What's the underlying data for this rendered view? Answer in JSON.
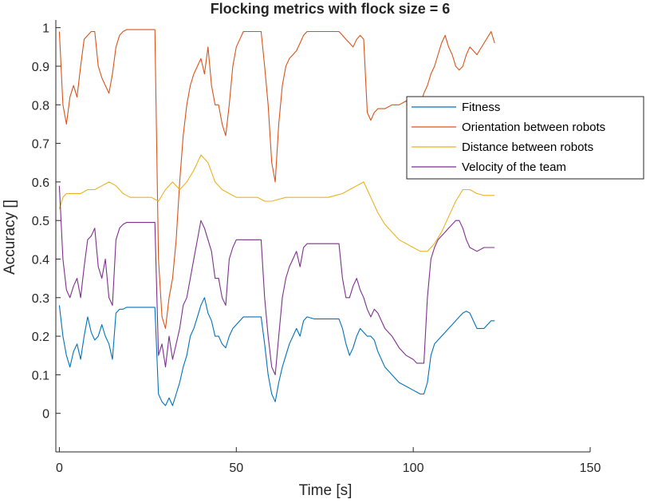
{
  "chart_data": {
    "type": "line",
    "title": "Flocking metrics with flock size = 6",
    "xlabel": "Time [s]",
    "ylabel": "Accuracy []",
    "xlim": [
      -1,
      150
    ],
    "ylim": [
      -0.1,
      1.02
    ],
    "xticks": [
      0,
      50,
      100,
      150
    ],
    "xtick_labels": [
      "0",
      "50",
      "100",
      "150"
    ],
    "yticks": [
      0,
      0.1,
      0.2,
      0.3,
      0.4,
      0.5,
      0.6,
      0.7,
      0.8,
      0.9,
      1
    ],
    "ytick_labels": [
      "0",
      "0.1",
      "0.2",
      "0.3",
      "0.4",
      "0.5",
      "0.6",
      "0.7",
      "0.8",
      "0.9",
      "1"
    ],
    "grid": false,
    "legend_position": "top-right",
    "series": [
      {
        "name": "Fitness",
        "color": "#0072BD",
        "x": [
          0,
          1,
          2,
          3,
          4,
          5,
          6,
          7,
          8,
          9,
          10,
          11,
          12,
          13,
          14,
          15,
          16,
          17,
          18,
          19,
          20,
          22,
          24,
          26,
          27,
          28,
          29,
          30,
          31,
          32,
          33,
          34,
          35,
          36,
          37,
          38,
          39,
          40,
          41,
          42,
          43,
          44,
          45,
          46,
          47,
          48,
          49,
          50,
          52,
          54,
          56,
          57,
          58,
          59,
          60,
          61,
          62,
          63,
          64,
          65,
          66,
          67,
          68,
          69,
          70,
          72,
          74,
          76,
          78,
          79,
          80,
          81,
          82,
          83,
          84,
          85,
          86,
          87,
          88,
          89,
          90,
          92,
          94,
          96,
          98,
          100,
          101,
          102,
          103,
          104,
          105,
          106,
          107,
          108,
          109,
          110,
          111,
          112,
          113,
          114,
          115,
          116,
          118,
          120,
          122,
          123
        ],
        "y": [
          0.28,
          0.2,
          0.15,
          0.12,
          0.16,
          0.18,
          0.14,
          0.2,
          0.25,
          0.21,
          0.19,
          0.2,
          0.23,
          0.2,
          0.18,
          0.14,
          0.26,
          0.27,
          0.27,
          0.275,
          0.275,
          0.275,
          0.275,
          0.275,
          0.275,
          0.05,
          0.03,
          0.02,
          0.04,
          0.02,
          0.05,
          0.08,
          0.12,
          0.15,
          0.2,
          0.22,
          0.25,
          0.28,
          0.3,
          0.26,
          0.24,
          0.2,
          0.2,
          0.18,
          0.17,
          0.2,
          0.22,
          0.23,
          0.25,
          0.25,
          0.25,
          0.25,
          0.18,
          0.1,
          0.05,
          0.03,
          0.08,
          0.12,
          0.15,
          0.18,
          0.2,
          0.22,
          0.2,
          0.24,
          0.25,
          0.245,
          0.245,
          0.245,
          0.245,
          0.245,
          0.22,
          0.18,
          0.15,
          0.17,
          0.2,
          0.22,
          0.21,
          0.2,
          0.2,
          0.19,
          0.16,
          0.12,
          0.1,
          0.08,
          0.07,
          0.06,
          0.055,
          0.05,
          0.05,
          0.08,
          0.15,
          0.18,
          0.19,
          0.2,
          0.21,
          0.22,
          0.23,
          0.24,
          0.25,
          0.26,
          0.265,
          0.26,
          0.22,
          0.22,
          0.24,
          0.24
        ]
      },
      {
        "name": "Orientation between robots",
        "color": "#D95319",
        "x": [
          0,
          1,
          2,
          3,
          4,
          5,
          6,
          7,
          8,
          9,
          10,
          11,
          12,
          13,
          14,
          15,
          16,
          17,
          18,
          19,
          20,
          22,
          24,
          26,
          27,
          28,
          29,
          30,
          31,
          32,
          33,
          34,
          35,
          36,
          37,
          38,
          39,
          40,
          41,
          42,
          43,
          44,
          45,
          46,
          47,
          48,
          49,
          50,
          51,
          52,
          54,
          56,
          57,
          58,
          59,
          60,
          61,
          62,
          63,
          64,
          65,
          66,
          67,
          68,
          69,
          70,
          72,
          74,
          76,
          78,
          79,
          80,
          81,
          82,
          83,
          84,
          85,
          86,
          87,
          88,
          89,
          90,
          92,
          94,
          96,
          98,
          100,
          101,
          102,
          103,
          104,
          105,
          106,
          107,
          108,
          109,
          110,
          111,
          112,
          113,
          114,
          115,
          116,
          118,
          120,
          122,
          123
        ],
        "y": [
          0.99,
          0.8,
          0.75,
          0.82,
          0.85,
          0.82,
          0.9,
          0.97,
          0.98,
          0.99,
          0.99,
          0.9,
          0.87,
          0.85,
          0.83,
          0.88,
          0.95,
          0.98,
          0.99,
          0.995,
          0.995,
          0.995,
          0.995,
          0.995,
          0.995,
          0.4,
          0.25,
          0.22,
          0.3,
          0.35,
          0.45,
          0.6,
          0.72,
          0.8,
          0.85,
          0.88,
          0.9,
          0.92,
          0.88,
          0.95,
          0.85,
          0.8,
          0.8,
          0.75,
          0.72,
          0.8,
          0.9,
          0.95,
          0.97,
          0.99,
          0.99,
          0.99,
          0.99,
          0.9,
          0.8,
          0.65,
          0.6,
          0.75,
          0.85,
          0.9,
          0.92,
          0.93,
          0.94,
          0.96,
          0.98,
          0.99,
          0.99,
          0.99,
          0.99,
          0.99,
          0.99,
          0.98,
          0.97,
          0.96,
          0.95,
          0.97,
          0.98,
          0.97,
          0.78,
          0.76,
          0.78,
          0.79,
          0.79,
          0.8,
          0.8,
          0.81,
          0.8,
          0.8,
          0.8,
          0.83,
          0.85,
          0.88,
          0.9,
          0.93,
          0.96,
          0.98,
          0.95,
          0.93,
          0.9,
          0.89,
          0.9,
          0.93,
          0.95,
          0.93,
          0.96,
          0.99,
          0.96
        ]
      },
      {
        "name": "Distance between robots",
        "color": "#EDB120",
        "x": [
          0,
          1,
          2,
          4,
          6,
          8,
          10,
          12,
          14,
          16,
          18,
          20,
          22,
          24,
          26,
          28,
          30,
          32,
          34,
          36,
          38,
          40,
          42,
          44,
          46,
          48,
          50,
          52,
          54,
          56,
          58,
          60,
          62,
          64,
          66,
          68,
          70,
          72,
          74,
          76,
          78,
          80,
          82,
          84,
          86,
          88,
          90,
          92,
          94,
          96,
          98,
          100,
          102,
          104,
          106,
          108,
          110,
          112,
          114,
          116,
          118,
          120,
          122,
          123
        ],
        "y": [
          0.53,
          0.56,
          0.57,
          0.57,
          0.57,
          0.58,
          0.58,
          0.59,
          0.6,
          0.59,
          0.57,
          0.56,
          0.56,
          0.56,
          0.56,
          0.55,
          0.58,
          0.6,
          0.58,
          0.6,
          0.63,
          0.67,
          0.65,
          0.6,
          0.58,
          0.57,
          0.56,
          0.56,
          0.56,
          0.56,
          0.55,
          0.55,
          0.555,
          0.56,
          0.56,
          0.56,
          0.56,
          0.56,
          0.56,
          0.56,
          0.565,
          0.57,
          0.58,
          0.59,
          0.6,
          0.56,
          0.52,
          0.49,
          0.47,
          0.45,
          0.44,
          0.43,
          0.42,
          0.42,
          0.44,
          0.47,
          0.51,
          0.55,
          0.58,
          0.58,
          0.57,
          0.565,
          0.565,
          0.565
        ]
      },
      {
        "name": "Velocity of the team",
        "color": "#7E2F8E",
        "x": [
          0,
          1,
          2,
          3,
          4,
          5,
          6,
          7,
          8,
          9,
          10,
          11,
          12,
          13,
          14,
          15,
          16,
          17,
          18,
          19,
          20,
          22,
          24,
          26,
          27,
          28,
          29,
          30,
          31,
          32,
          33,
          34,
          35,
          36,
          37,
          38,
          39,
          40,
          41,
          42,
          43,
          44,
          45,
          46,
          47,
          48,
          49,
          50,
          52,
          54,
          56,
          57,
          58,
          59,
          60,
          61,
          62,
          63,
          64,
          65,
          66,
          67,
          68,
          69,
          70,
          72,
          74,
          76,
          78,
          79,
          80,
          81,
          82,
          83,
          84,
          85,
          86,
          87,
          88,
          89,
          90,
          92,
          94,
          96,
          98,
          100,
          101,
          102,
          103,
          104,
          105,
          106,
          107,
          108,
          109,
          110,
          111,
          112,
          113,
          114,
          115,
          116,
          118,
          120,
          122,
          123
        ],
        "y": [
          0.59,
          0.4,
          0.32,
          0.3,
          0.33,
          0.35,
          0.3,
          0.38,
          0.45,
          0.46,
          0.48,
          0.38,
          0.35,
          0.4,
          0.3,
          0.28,
          0.45,
          0.48,
          0.49,
          0.495,
          0.495,
          0.495,
          0.495,
          0.495,
          0.495,
          0.15,
          0.18,
          0.12,
          0.2,
          0.14,
          0.18,
          0.22,
          0.28,
          0.3,
          0.35,
          0.4,
          0.45,
          0.5,
          0.48,
          0.45,
          0.42,
          0.35,
          0.35,
          0.3,
          0.28,
          0.4,
          0.43,
          0.45,
          0.45,
          0.45,
          0.45,
          0.45,
          0.3,
          0.2,
          0.12,
          0.1,
          0.2,
          0.3,
          0.35,
          0.38,
          0.4,
          0.42,
          0.38,
          0.43,
          0.44,
          0.44,
          0.44,
          0.44,
          0.44,
          0.44,
          0.35,
          0.3,
          0.3,
          0.33,
          0.35,
          0.32,
          0.3,
          0.27,
          0.25,
          0.27,
          0.26,
          0.22,
          0.2,
          0.17,
          0.15,
          0.14,
          0.13,
          0.13,
          0.13,
          0.3,
          0.4,
          0.43,
          0.45,
          0.46,
          0.47,
          0.48,
          0.49,
          0.5,
          0.5,
          0.48,
          0.45,
          0.43,
          0.42,
          0.43,
          0.43,
          0.43
        ]
      }
    ]
  }
}
